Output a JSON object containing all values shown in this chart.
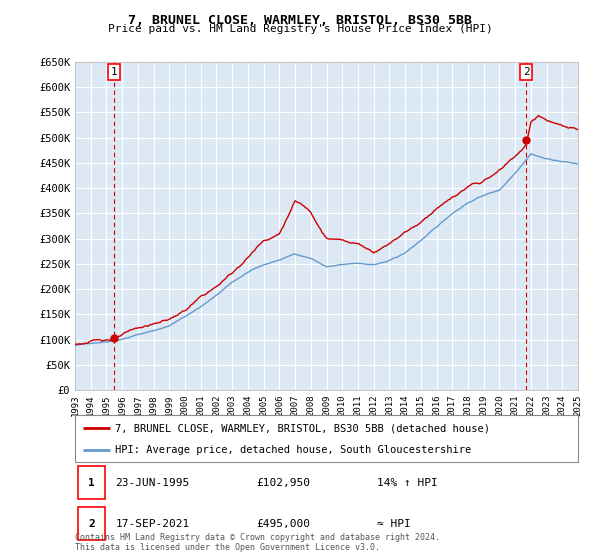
{
  "title": "7, BRUNEL CLOSE, WARMLEY, BRISTOL, BS30 5BB",
  "subtitle": "Price paid vs. HM Land Registry's House Price Index (HPI)",
  "legend_line1": "7, BRUNEL CLOSE, WARMLEY, BRISTOL, BS30 5BB (detached house)",
  "legend_line2": "HPI: Average price, detached house, South Gloucestershire",
  "point1_date": "23-JUN-1995",
  "point1_price": "£102,950",
  "point1_hpi": "14% ↑ HPI",
  "point2_date": "17-SEP-2021",
  "point2_price": "£495,000",
  "point2_hpi": "≈ HPI",
  "footnote": "Contains HM Land Registry data © Crown copyright and database right 2024.\nThis data is licensed under the Open Government Licence v3.0.",
  "price_color": "#cc0000",
  "hpi_color": "#6699cc",
  "bg_color": "#dce9f5",
  "grid_color": "#ffffff",
  "ylim": [
    0,
    650000
  ],
  "yticks": [
    0,
    50000,
    100000,
    150000,
    200000,
    250000,
    300000,
    350000,
    400000,
    450000,
    500000,
    550000,
    600000,
    650000
  ],
  "ytick_labels": [
    "£0",
    "£50K",
    "£100K",
    "£150K",
    "£200K",
    "£250K",
    "£300K",
    "£350K",
    "£400K",
    "£450K",
    "£500K",
    "£550K",
    "£600K",
    "£650K"
  ],
  "xtick_years": [
    1993,
    1994,
    1995,
    1996,
    1997,
    1998,
    1999,
    2000,
    2001,
    2002,
    2003,
    2004,
    2005,
    2006,
    2007,
    2008,
    2009,
    2010,
    2011,
    2012,
    2013,
    2014,
    2015,
    2016,
    2017,
    2018,
    2019,
    2020,
    2021,
    2022,
    2023,
    2024,
    2025
  ],
  "point1_x": 1995.48,
  "point1_y": 102950,
  "point2_x": 2021.71,
  "point2_y": 495000,
  "xlim": [
    1993,
    2025
  ]
}
